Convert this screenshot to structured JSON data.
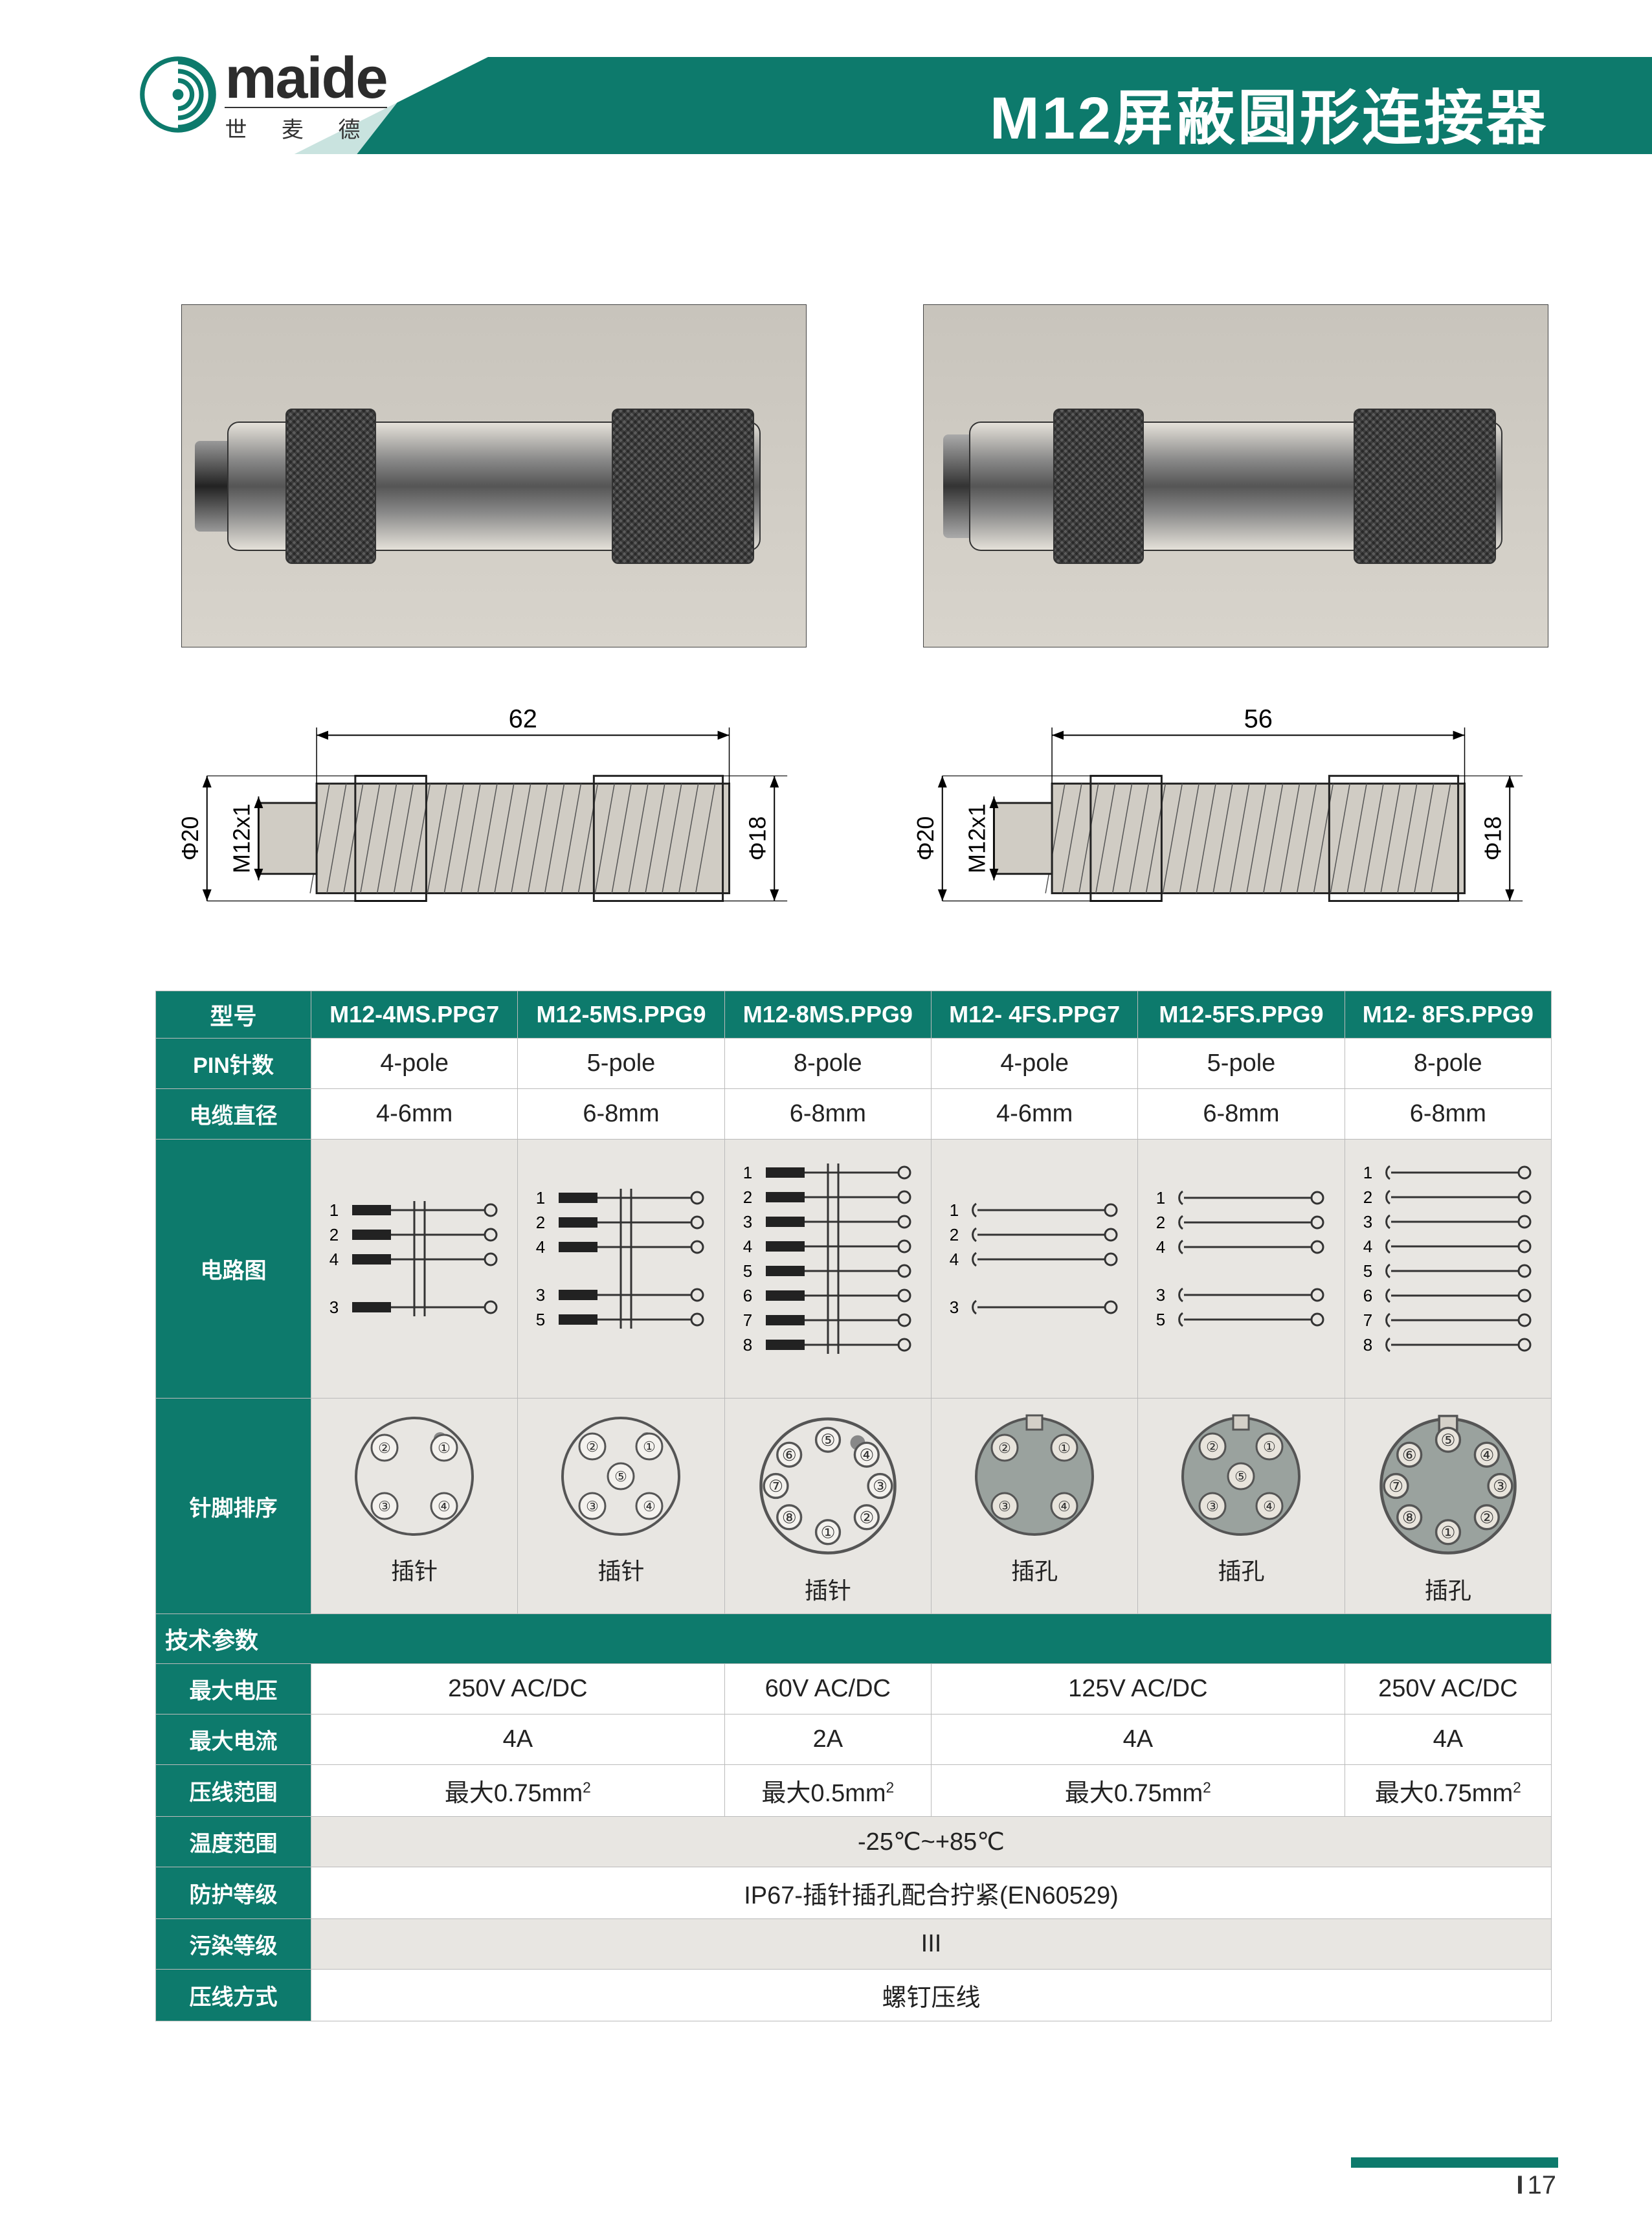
{
  "header": {
    "title": "M12屏蔽圆形连接器",
    "logo_en": "maide",
    "logo_cn": "世 麦 德"
  },
  "colors": {
    "brand_green": "#0d7a6c",
    "pale_green": "#c9e3df",
    "row_alt": "#e8e6e2",
    "border": "#bbbbbb",
    "text": "#222222"
  },
  "drawings": {
    "left": {
      "length": "62",
      "d_out": "Φ20",
      "thread": "M12x1",
      "d_in": "Φ18"
    },
    "right": {
      "length": "56",
      "d_out": "Φ20",
      "thread": "M12x1",
      "d_in": "Φ18"
    }
  },
  "table": {
    "head_label": "型号",
    "models": [
      "M12-4MS.PPG7",
      "M12-5MS.PPG9",
      "M12-8MS.PPG9",
      "M12- 4FS.PPG7",
      "M12-5FS.PPG9",
      "M12- 8FS.PPG9"
    ],
    "rows_simple": [
      {
        "label": "PIN针数",
        "cells": [
          "4-pole",
          "5-pole",
          "8-pole",
          "4-pole",
          "5-pole",
          "8-pole"
        ]
      },
      {
        "label": "电缆直径",
        "cells": [
          "4-6mm",
          "6-8mm",
          "6-8mm",
          "4-6mm",
          "6-8mm",
          "6-8mm"
        ]
      }
    ],
    "circuit_label": "电路图",
    "circuits": [
      {
        "pins": [
          "1",
          "2",
          "4",
          "3"
        ],
        "separated": true
      },
      {
        "pins": [
          "1",
          "2",
          "4",
          "3",
          "5"
        ],
        "separated": true
      },
      {
        "pins": [
          "1",
          "2",
          "3",
          "4",
          "5",
          "6",
          "7",
          "8"
        ],
        "separated": false
      },
      {
        "pins": [
          "1",
          "2",
          "4",
          "3"
        ],
        "separated": true,
        "female": true
      },
      {
        "pins": [
          "1",
          "2",
          "4",
          "3",
          "5"
        ],
        "separated": true,
        "female": true
      },
      {
        "pins": [
          "1",
          "2",
          "3",
          "4",
          "5",
          "6",
          "7",
          "8"
        ],
        "separated": false,
        "female": true
      }
    ],
    "pinorder_label": "针脚排序",
    "pin_faces": [
      {
        "type": "male",
        "n": 4,
        "label": "插针",
        "layout": "4"
      },
      {
        "type": "male",
        "n": 5,
        "label": "插针",
        "layout": "5"
      },
      {
        "type": "male",
        "n": 8,
        "label": "插针",
        "layout": "8"
      },
      {
        "type": "female",
        "n": 4,
        "label": "插孔",
        "layout": "4"
      },
      {
        "type": "female",
        "n": 5,
        "label": "插孔",
        "layout": "5"
      },
      {
        "type": "female",
        "n": 8,
        "label": "插孔",
        "layout": "8"
      }
    ],
    "tech_section": "技术参数",
    "tech_rows": [
      {
        "label": "最大电压",
        "spans": [
          {
            "c": 2,
            "v": "250V   AC/DC"
          },
          {
            "c": 1,
            "v": "60V   AC/DC"
          },
          {
            "c": 2,
            "v": "125V   AC/DC"
          },
          {
            "c": 1,
            "v": "250V   AC/DC"
          }
        ]
      },
      {
        "label": "最大电流",
        "spans": [
          {
            "c": 2,
            "v": "4A"
          },
          {
            "c": 1,
            "v": "2A"
          },
          {
            "c": 2,
            "v": "4A"
          },
          {
            "c": 1,
            "v": "4A"
          }
        ]
      },
      {
        "label": "压线范围",
        "spans": [
          {
            "c": 2,
            "v": "最大0.75mm",
            "sup": "2"
          },
          {
            "c": 1,
            "v": "最大0.5mm",
            "sup": "2"
          },
          {
            "c": 2,
            "v": "最大0.75mm",
            "sup": "2"
          },
          {
            "c": 1,
            "v": "最大0.75mm",
            "sup": "2"
          }
        ]
      },
      {
        "label": "温度范围",
        "spans": [
          {
            "c": 6,
            "v": "-25℃~+85℃"
          }
        ],
        "alt": true
      },
      {
        "label": "防护等级",
        "spans": [
          {
            "c": 6,
            "v": "IP67-插针插孔配合拧紧(EN60529)"
          }
        ]
      },
      {
        "label": "污染等级",
        "spans": [
          {
            "c": 6,
            "v": "III"
          }
        ],
        "alt": true
      },
      {
        "label": "压线方式",
        "spans": [
          {
            "c": 6,
            "v": "螺钉压线"
          }
        ]
      }
    ]
  },
  "footer": {
    "roman": "I",
    "num": "17"
  }
}
